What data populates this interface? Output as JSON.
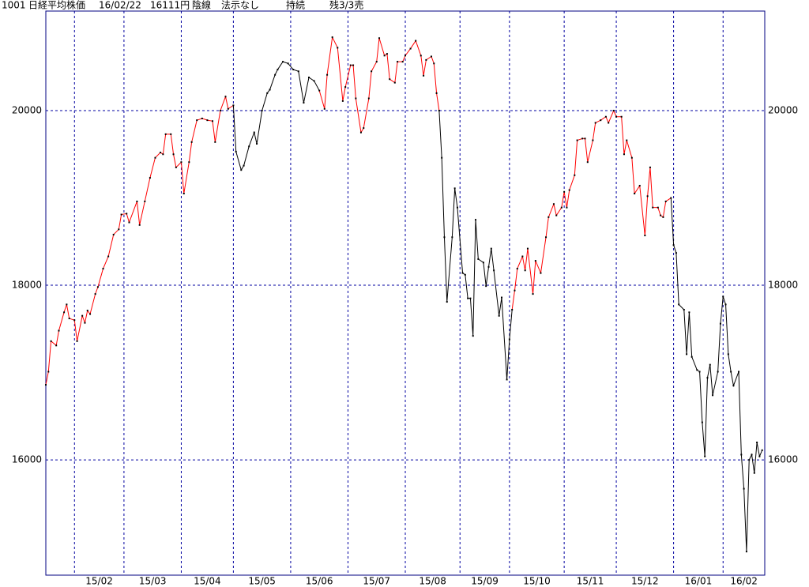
{
  "header": {
    "code": "1001",
    "name": "日経平均株価",
    "date": "16/02/22",
    "price": "16111円",
    "candle": "陰線",
    "display": "法示なし",
    "status": "持続",
    "remaining": "残3/3売"
  },
  "chart_data": {
    "type": "line",
    "grid": true,
    "frame_color": "#000080",
    "grid_color": "#0000a0",
    "xlim": [
      0,
      276
    ],
    "xticks": [
      {
        "value": 11,
        "label": "15/02"
      },
      {
        "value": 30,
        "label": "15/03"
      },
      {
        "value": 52,
        "label": "15/04"
      },
      {
        "value": 72,
        "label": "15/05"
      },
      {
        "value": 94,
        "label": "15/06"
      },
      {
        "value": 116,
        "label": "15/07"
      },
      {
        "value": 138,
        "label": "15/08"
      },
      {
        "value": 159,
        "label": "15/09"
      },
      {
        "value": 178,
        "label": "15/10"
      },
      {
        "value": 199,
        "label": "15/11"
      },
      {
        "value": 219,
        "label": "15/12"
      },
      {
        "value": 241,
        "label": "16/01"
      },
      {
        "value": 260,
        "label": "16/02"
      }
    ],
    "ylim": [
      14680,
      21140
    ],
    "yticks": [
      16000,
      18000,
      20000
    ],
    "series": [
      {
        "color": "#ff0000",
        "x": [
          0,
          1,
          2,
          4,
          5,
          7,
          8,
          9,
          11,
          12,
          14,
          15,
          16,
          17,
          19,
          20,
          22,
          24,
          26,
          28,
          29,
          31,
          32,
          35,
          36,
          38,
          40,
          42,
          44,
          45,
          46,
          48,
          49,
          50,
          52,
          53,
          55,
          56,
          58,
          60,
          62,
          64,
          65,
          67,
          69,
          70,
          72
        ],
        "values": [
          16860,
          17010,
          17360,
          17310,
          17480,
          17690,
          17780,
          17620,
          17600,
          17360,
          17650,
          17570,
          17710,
          17670,
          17900,
          17980,
          18190,
          18330,
          18580,
          18640,
          18810,
          18820,
          18720,
          18960,
          18690,
          18960,
          19230,
          19460,
          19520,
          19500,
          19730,
          19730,
          19500,
          19350,
          19410,
          19050,
          19410,
          19640,
          19890,
          19910,
          19890,
          19880,
          19640,
          20000,
          20160,
          20020,
          20060
        ]
      },
      {
        "color": "#000000",
        "x": [
          73,
          75,
          76,
          78,
          80,
          81,
          83,
          85,
          86,
          88,
          89,
          91,
          93,
          95,
          97,
          99,
          101,
          103,
          105
        ],
        "values": [
          19530,
          19320,
          19370,
          19590,
          19750,
          19620,
          20000,
          20200,
          20240,
          20410,
          20470,
          20560,
          20540,
          20470,
          20450,
          20090,
          20380,
          20340,
          20230
        ]
      },
      {
        "color": "#ff0000",
        "x": [
          107,
          108,
          110,
          112,
          114,
          115,
          117,
          118,
          119,
          121,
          122,
          124,
          125,
          127,
          128,
          130,
          131,
          132,
          134,
          135,
          137,
          138,
          140,
          142,
          144,
          145,
          146,
          148,
          149,
          150,
          151
        ],
        "values": [
          20020,
          20410,
          20840,
          20720,
          20110,
          20270,
          20520,
          20520,
          20140,
          19750,
          19800,
          20140,
          20450,
          20560,
          20830,
          20630,
          20650,
          20360,
          20320,
          20560,
          20560,
          20630,
          20710,
          20800,
          20630,
          20400,
          20580,
          20620,
          20540,
          20200,
          20000
        ]
      },
      {
        "color": "#000000",
        "x": [
          152,
          153,
          154,
          156,
          157,
          158,
          160,
          161,
          162,
          163,
          164,
          165,
          166,
          168,
          169,
          170,
          171,
          172,
          174,
          175,
          177,
          178,
          179
        ],
        "values": [
          19460,
          18550,
          17810,
          18550,
          19110,
          18890,
          18140,
          18120,
          17850,
          17850,
          17420,
          18750,
          18300,
          18260,
          17990,
          18210,
          18420,
          18170,
          17650,
          17860,
          16920,
          17380,
          17720
        ]
      },
      {
        "color": "#ff0000",
        "x": [
          180,
          181,
          183,
          184,
          185,
          187,
          188,
          190,
          192,
          193,
          195,
          196,
          198,
          199,
          200,
          201,
          203,
          204,
          206,
          207,
          208,
          210,
          211,
          213,
          215,
          216,
          218,
          219,
          221,
          222,
          223,
          225,
          226,
          228,
          230,
          231,
          232,
          233,
          235,
          236,
          237,
          238,
          240
        ],
        "values": [
          17940,
          18190,
          18330,
          18170,
          18420,
          17900,
          18280,
          18140,
          18550,
          18780,
          18930,
          18800,
          18890,
          19070,
          18890,
          19090,
          19260,
          19660,
          19680,
          19680,
          19410,
          19660,
          19860,
          19890,
          19930,
          19860,
          20000,
          19930,
          19930,
          19500,
          19660,
          19460,
          19050,
          19140,
          18570,
          19020,
          19350,
          18890,
          18890,
          18800,
          18780,
          18960,
          19000
        ]
      },
      {
        "color": "#000000",
        "x": [
          241,
          242,
          243,
          245,
          246,
          247,
          248,
          250,
          251,
          252,
          253,
          254,
          255,
          256,
          258,
          259,
          260,
          261,
          262,
          263,
          264,
          266,
          267,
          268,
          269,
          270,
          271,
          272,
          273,
          274,
          275
        ],
        "values": [
          18460,
          18370,
          17780,
          17720,
          17210,
          17690,
          17180,
          17030,
          17010,
          16430,
          16040,
          16940,
          17090,
          16740,
          17010,
          17560,
          17870,
          17780,
          17210,
          17010,
          16850,
          17010,
          16060,
          15670,
          14950,
          16000,
          16060,
          15850,
          16200,
          16040,
          16111
        ]
      }
    ]
  }
}
